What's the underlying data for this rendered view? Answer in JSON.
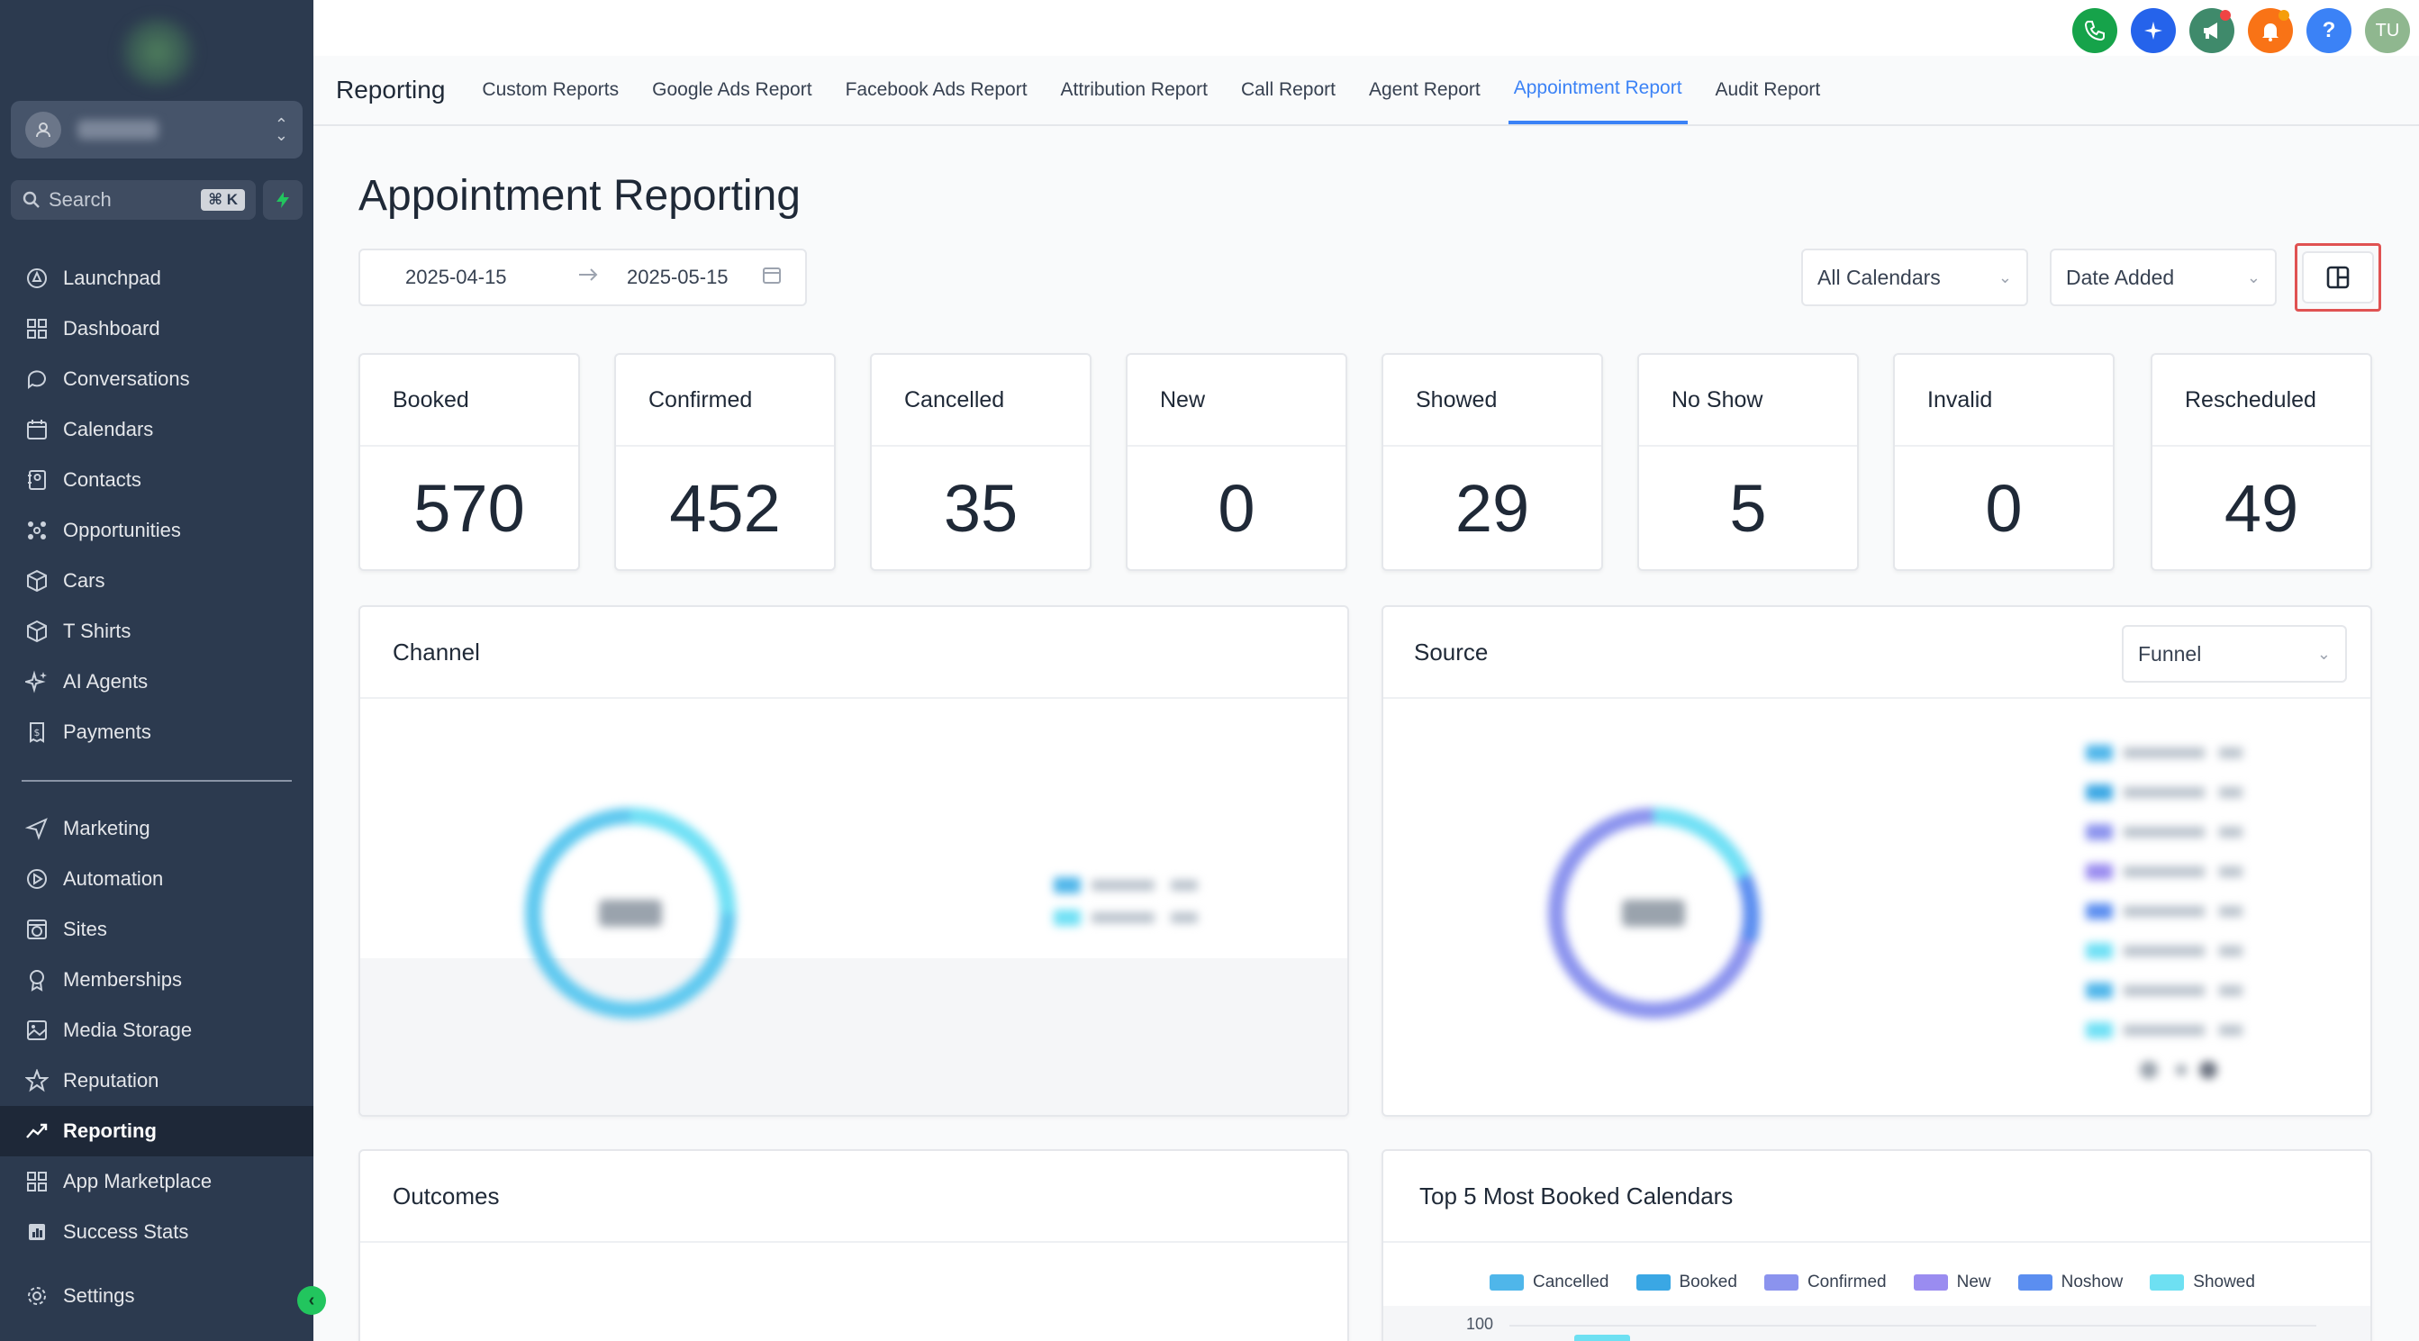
{
  "sidebar": {
    "search": {
      "placeholder": "Search",
      "shortcut": "⌘ K"
    },
    "items_top": [
      {
        "label": "Launchpad",
        "icon": "rocket-icon"
      },
      {
        "label": "Dashboard",
        "icon": "grid-icon"
      },
      {
        "label": "Conversations",
        "icon": "chat-icon"
      },
      {
        "label": "Calendars",
        "icon": "calendar-icon"
      },
      {
        "label": "Contacts",
        "icon": "contacts-icon"
      },
      {
        "label": "Opportunities",
        "icon": "network-icon"
      },
      {
        "label": "Cars",
        "icon": "box-icon"
      },
      {
        "label": "T Shirts",
        "icon": "box-icon"
      },
      {
        "label": "AI Agents",
        "icon": "sparkle-icon"
      },
      {
        "label": "Payments",
        "icon": "receipt-icon"
      }
    ],
    "items_bottom": [
      {
        "label": "Marketing",
        "icon": "send-icon"
      },
      {
        "label": "Automation",
        "icon": "automation-icon"
      },
      {
        "label": "Sites",
        "icon": "globe-icon"
      },
      {
        "label": "Memberships",
        "icon": "award-icon"
      },
      {
        "label": "Media Storage",
        "icon": "image-icon"
      },
      {
        "label": "Reputation",
        "icon": "star-icon"
      },
      {
        "label": "Reporting",
        "icon": "trend-icon",
        "active": true
      },
      {
        "label": "App Marketplace",
        "icon": "apps-icon"
      },
      {
        "label": "Success Stats",
        "icon": "stats-icon"
      }
    ],
    "settings": {
      "label": "Settings",
      "icon": "gear-icon"
    }
  },
  "topbar": {
    "icons": [
      {
        "name": "phone-icon",
        "color": "#16a34a",
        "glyph": "✆"
      },
      {
        "name": "magic-icon",
        "color": "#2563eb",
        "glyph": "✦"
      },
      {
        "name": "megaphone-icon",
        "color": "#3f8a6b",
        "glyph": "📣",
        "badge": "#ef4444"
      },
      {
        "name": "bell-icon",
        "color": "#f97316",
        "glyph": "🔔",
        "badge": "#f59e0b"
      },
      {
        "name": "help-icon",
        "color": "#3b82f6",
        "glyph": "?"
      },
      {
        "name": "user-avatar",
        "color": "#8fb78f",
        "glyph": "TU"
      }
    ]
  },
  "tabs": {
    "title": "Reporting",
    "items": [
      "Custom Reports",
      "Google Ads Report",
      "Facebook Ads Report",
      "Attribution Report",
      "Call Report",
      "Agent Report",
      "Appointment Report",
      "Audit Report"
    ],
    "active": "Appointment Report"
  },
  "page": {
    "title": "Appointment Reporting",
    "date_from": "2025-04-15",
    "date_to": "2025-05-15",
    "calendar_filter": "All Calendars",
    "date_filter": "Date Added"
  },
  "stats": [
    {
      "label": "Booked",
      "value": "570"
    },
    {
      "label": "Confirmed",
      "value": "452"
    },
    {
      "label": "Cancelled",
      "value": "35"
    },
    {
      "label": "New",
      "value": "0"
    },
    {
      "label": "Showed",
      "value": "29"
    },
    {
      "label": "No Show",
      "value": "5"
    },
    {
      "label": "Invalid",
      "value": "0"
    },
    {
      "label": "Rescheduled",
      "value": "49"
    }
  ],
  "panels": {
    "channel": {
      "title": "Channel"
    },
    "source": {
      "title": "Source",
      "dropdown": "Funnel"
    },
    "outcomes": {
      "title": "Outcomes"
    },
    "top5": {
      "title": "Top 5 Most Booked Calendars",
      "legend": [
        {
          "label": "Cancelled",
          "color": "#4fb6ea"
        },
        {
          "label": "Booked",
          "color": "#3aa7e4"
        },
        {
          "label": "Confirmed",
          "color": "#8b93ee"
        },
        {
          "label": "New",
          "color": "#9a8cf0"
        },
        {
          "label": "Noshow",
          "color": "#5b8ef0"
        },
        {
          "label": "Showed",
          "color": "#6ee0f2"
        }
      ],
      "y_tick": "100"
    }
  }
}
